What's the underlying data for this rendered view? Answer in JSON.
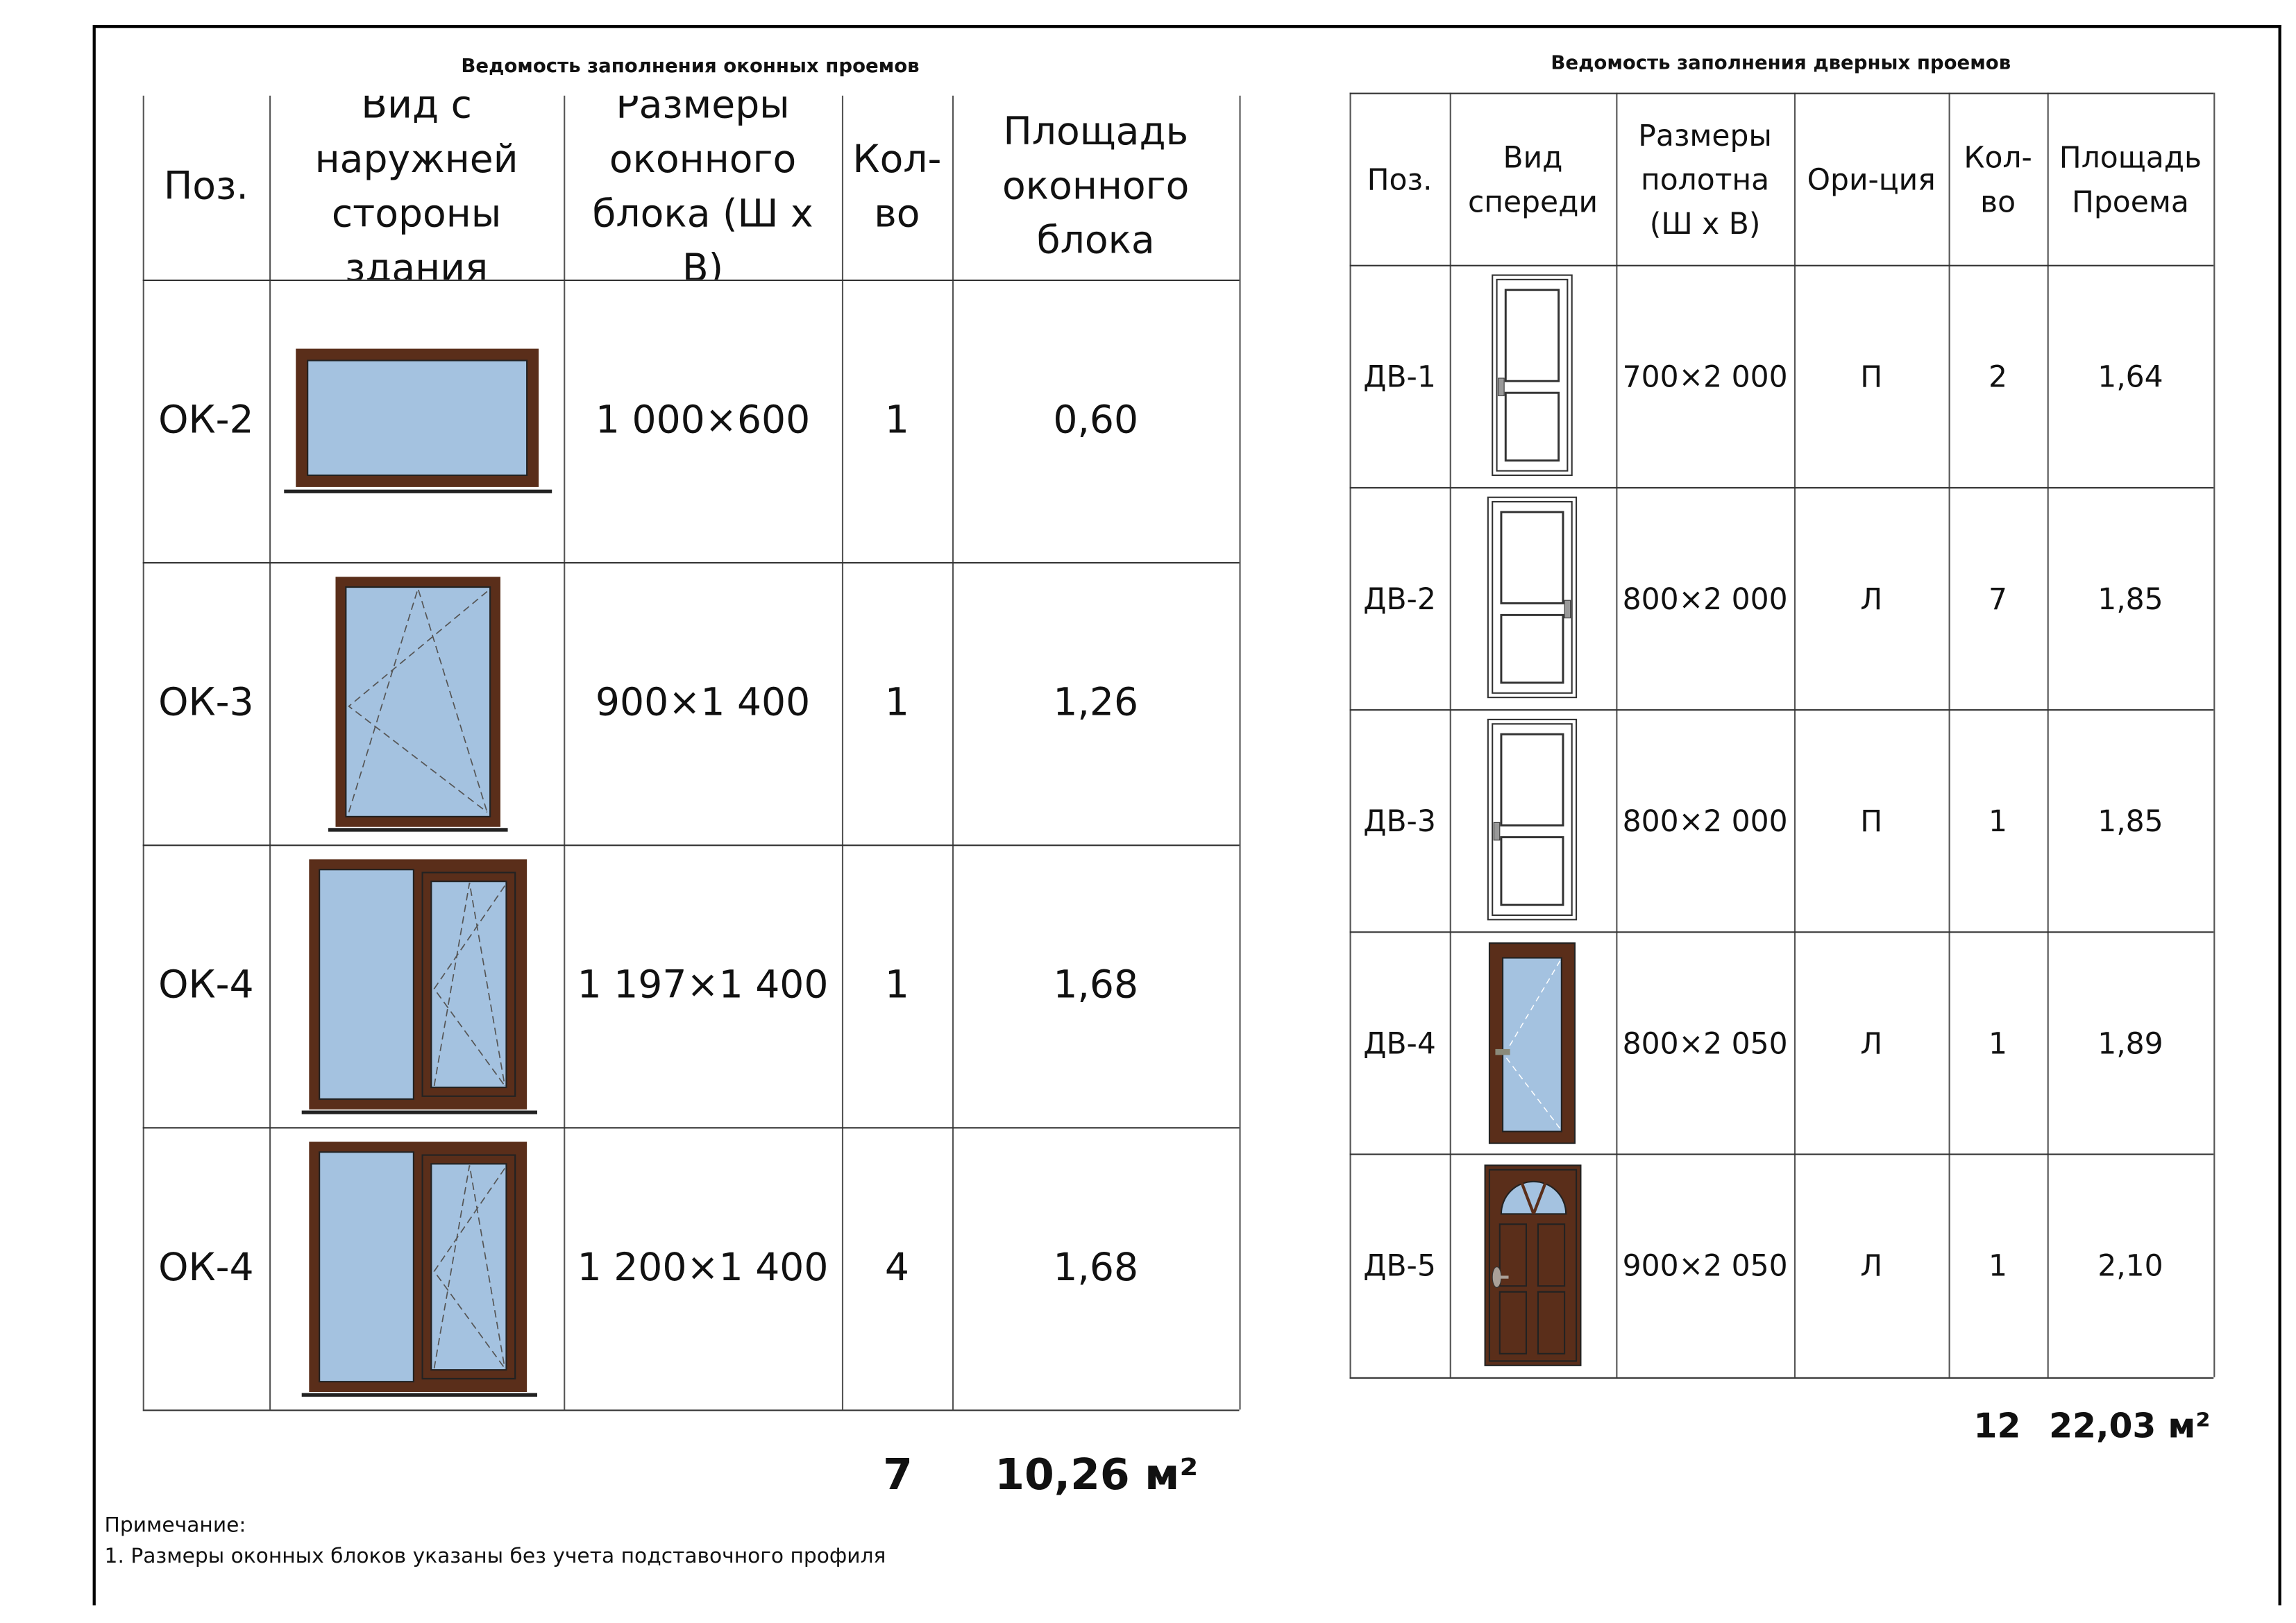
{
  "windows": {
    "title": "Ведомость заполнения оконных проемов",
    "headers": [
      "Поз.",
      "Вид с наружней стороны здания",
      "Размеры оконного блока (Ш х В)",
      "Кол-во",
      "Площадь оконного блока"
    ],
    "rows": [
      {
        "pos": "ОК-2",
        "view": "window-single-fixed",
        "size": "1 000×600",
        "qty": "1",
        "area": "0,60"
      },
      {
        "pos": "ОК-3",
        "view": "window-tilt-turn",
        "size": "900×1 400",
        "qty": "1",
        "area": "1,26"
      },
      {
        "pos": "ОК-4",
        "view": "window-two-sash",
        "size": "1 197×1 400",
        "qty": "1",
        "area": "1,68"
      },
      {
        "pos": "ОК-4",
        "view": "window-two-sash",
        "size": "1 200×1 400",
        "qty": "4",
        "area": "1,68"
      }
    ],
    "total_qty": "7",
    "total_area": "10,26 м²"
  },
  "doors": {
    "title": "Ведомость заполнения дверных проемов",
    "headers": [
      "Поз.",
      "Вид спереди",
      "Размеры полотна (Ш х В)",
      "Ори-ция",
      "Кол-во",
      "Площадь Проема"
    ],
    "rows": [
      {
        "pos": "ДВ-1",
        "view": "door-white-panel",
        "size": "700×2 000",
        "orient": "П",
        "qty": "2",
        "area": "1,64"
      },
      {
        "pos": "ДВ-2",
        "view": "door-white-panel",
        "size": "800×2 000",
        "orient": "Л",
        "qty": "7",
        "area": "1,85"
      },
      {
        "pos": "ДВ-3",
        "view": "door-white-panel",
        "size": "800×2 000",
        "orient": "П",
        "qty": "1",
        "area": "1,85"
      },
      {
        "pos": "ДВ-4",
        "view": "door-glazed-brown",
        "size": "800×2 050",
        "orient": "Л",
        "qty": "1",
        "area": "1,89"
      },
      {
        "pos": "ДВ-5",
        "view": "door-brown-arched",
        "size": "900×2 050",
        "orient": "Л",
        "qty": "1",
        "area": "2,10"
      }
    ],
    "total_qty": "12",
    "total_area": "22,03 м²"
  },
  "note": {
    "label": "Примечание:",
    "items": [
      "1.  Размеры оконных блоков указаны без учета подставочного профиля"
    ]
  },
  "colors": {
    "frame": "#5a2e1a",
    "glass": "#a4c2e0"
  }
}
